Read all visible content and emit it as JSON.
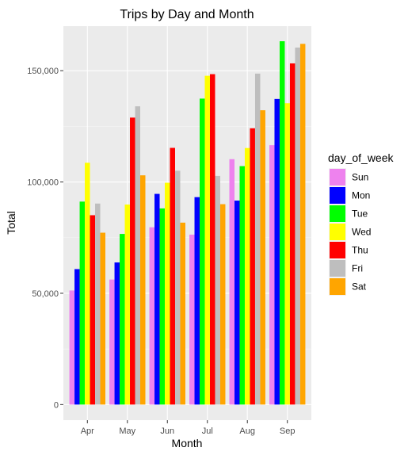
{
  "chart_data": {
    "type": "bar",
    "title": "Trips by Day and Month",
    "xlabel": "Month",
    "ylabel": "Total",
    "categories": [
      "Apr",
      "May",
      "Jun",
      "Jul",
      "Aug",
      "Sep"
    ],
    "ylim": [
      -7000,
      170000
    ],
    "yticks": [
      0,
      50000,
      100000,
      150000
    ],
    "ytick_labels": [
      "0",
      "50,000",
      "100,000",
      "150,000"
    ],
    "grid": true,
    "legend": {
      "title": "day_of_week",
      "position": "right"
    },
    "series": [
      {
        "name": "Sun",
        "color": "#EE82EE",
        "values": [
          51251,
          56168,
          79656,
          76327,
          110246,
          116532
        ]
      },
      {
        "name": "Mon",
        "color": "#0000FF",
        "values": [
          60861,
          63846,
          94655,
          93189,
          91633,
          137288
        ]
      },
      {
        "name": "Tue",
        "color": "#00FF00",
        "values": [
          91185,
          76662,
          88134,
          137454,
          107124,
          163230
        ]
      },
      {
        "name": "Wed",
        "color": "#FFFF00",
        "values": [
          108631,
          89857,
          99654,
          147717,
          115256,
          135373
        ]
      },
      {
        "name": "Thu",
        "color": "#FF0000",
        "values": [
          85067,
          128921,
          115325,
          148439,
          124117,
          153276
        ]
      },
      {
        "name": "Fri",
        "color": "#BEBEBE",
        "values": [
          90303,
          133991,
          105056,
          102735,
          148674,
          160380
        ]
      },
      {
        "name": "Sat",
        "color": "#FFA500",
        "values": [
          77218,
          102990,
          81736,
          90033,
          132225,
          162057
        ]
      }
    ]
  }
}
